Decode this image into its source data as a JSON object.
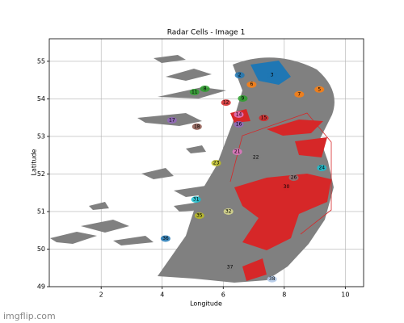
{
  "chart_data": {
    "type": "scatter",
    "title": "Radar Cells - Image 1",
    "x_label": "Longitude",
    "y_label": "Latitude",
    "xlim": [
      0.3,
      10.6
    ],
    "ylim": [
      49,
      55.6
    ],
    "xticks": [
      2,
      4,
      6,
      8,
      10
    ],
    "yticks": [
      49,
      50,
      51,
      52,
      53,
      54,
      55
    ],
    "grid": true,
    "labels": [
      "2",
      "3",
      "5",
      "6",
      "7",
      "8",
      "9",
      "11",
      "12",
      "14",
      "15",
      "16",
      "17",
      "18",
      "21",
      "22",
      "23",
      "24",
      "26",
      "30",
      "31",
      "32",
      "35",
      "36",
      "37",
      "38"
    ],
    "x": [
      6.54,
      7.6,
      9.15,
      6.93,
      8.49,
      5.4,
      6.64,
      5.06,
      6.09,
      6.51,
      7.33,
      6.51,
      4.32,
      5.14,
      6.46,
      7.07,
      5.77,
      9.23,
      8.31,
      8.07,
      5.11,
      6.17,
      5.22,
      4.11,
      6.22,
      7.6
    ],
    "y": [
      54.63,
      54.63,
      54.25,
      54.38,
      54.12,
      54.27,
      54.01,
      54.18,
      53.9,
      53.58,
      53.49,
      53.32,
      53.43,
      53.26,
      52.59,
      52.44,
      52.29,
      52.16,
      51.9,
      51.65,
      51.32,
      51.0,
      50.89,
      50.28,
      49.52,
      49.2
    ],
    "colors": [
      "#1f77b4",
      "#1f77b4",
      "#ff7f0e",
      "#ff7f0e",
      "#ff7f0e",
      "#2ca02c",
      "#2ca02c",
      "#2ca02c",
      "#d62728",
      "#e377c2",
      "#d62728",
      "#9467bd",
      "#9467bd",
      "#8c564b",
      "#e377c2",
      "#7f7f7f",
      "#bcbd22",
      "#17becf",
      "#7f7f7f",
      "#d62728",
      "#17becf",
      "#dbdb8d",
      "#bcbd22",
      "#1f77b4",
      "#7f7f7f",
      "#aec7e8"
    ]
  },
  "footer": "imgflip.com"
}
